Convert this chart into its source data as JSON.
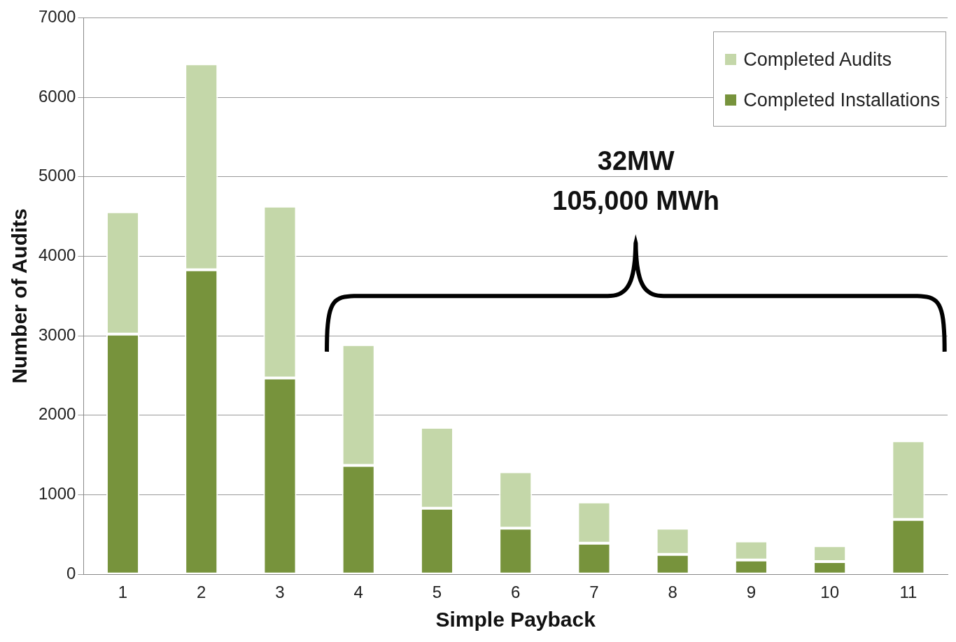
{
  "chart_data": {
    "type": "bar",
    "stacked": true,
    "xlabel": "Simple Payback",
    "ylabel": "Number of Audits",
    "categories": [
      "1",
      "2",
      "3",
      "4",
      "5",
      "6",
      "7",
      "8",
      "9",
      "10",
      "11"
    ],
    "series": [
      {
        "name": "Completed Installations",
        "color": "#77933c",
        "values": [
          3020,
          3830,
          2470,
          1370,
          830,
          580,
          390,
          250,
          180,
          160,
          690
        ]
      },
      {
        "name": "Completed Audits",
        "color": "#c4d7a9",
        "values": [
          1540,
          2590,
          2160,
          1520,
          1020,
          710,
          520,
          330,
          240,
          200,
          990
        ]
      }
    ],
    "ylim": [
      0,
      7000
    ],
    "yticks": [
      0,
      1000,
      2000,
      3000,
      4000,
      5000,
      6000,
      7000
    ],
    "grid": "y",
    "legend": "top right",
    "annotations": [
      "32MW",
      "105,000 MWh"
    ]
  }
}
